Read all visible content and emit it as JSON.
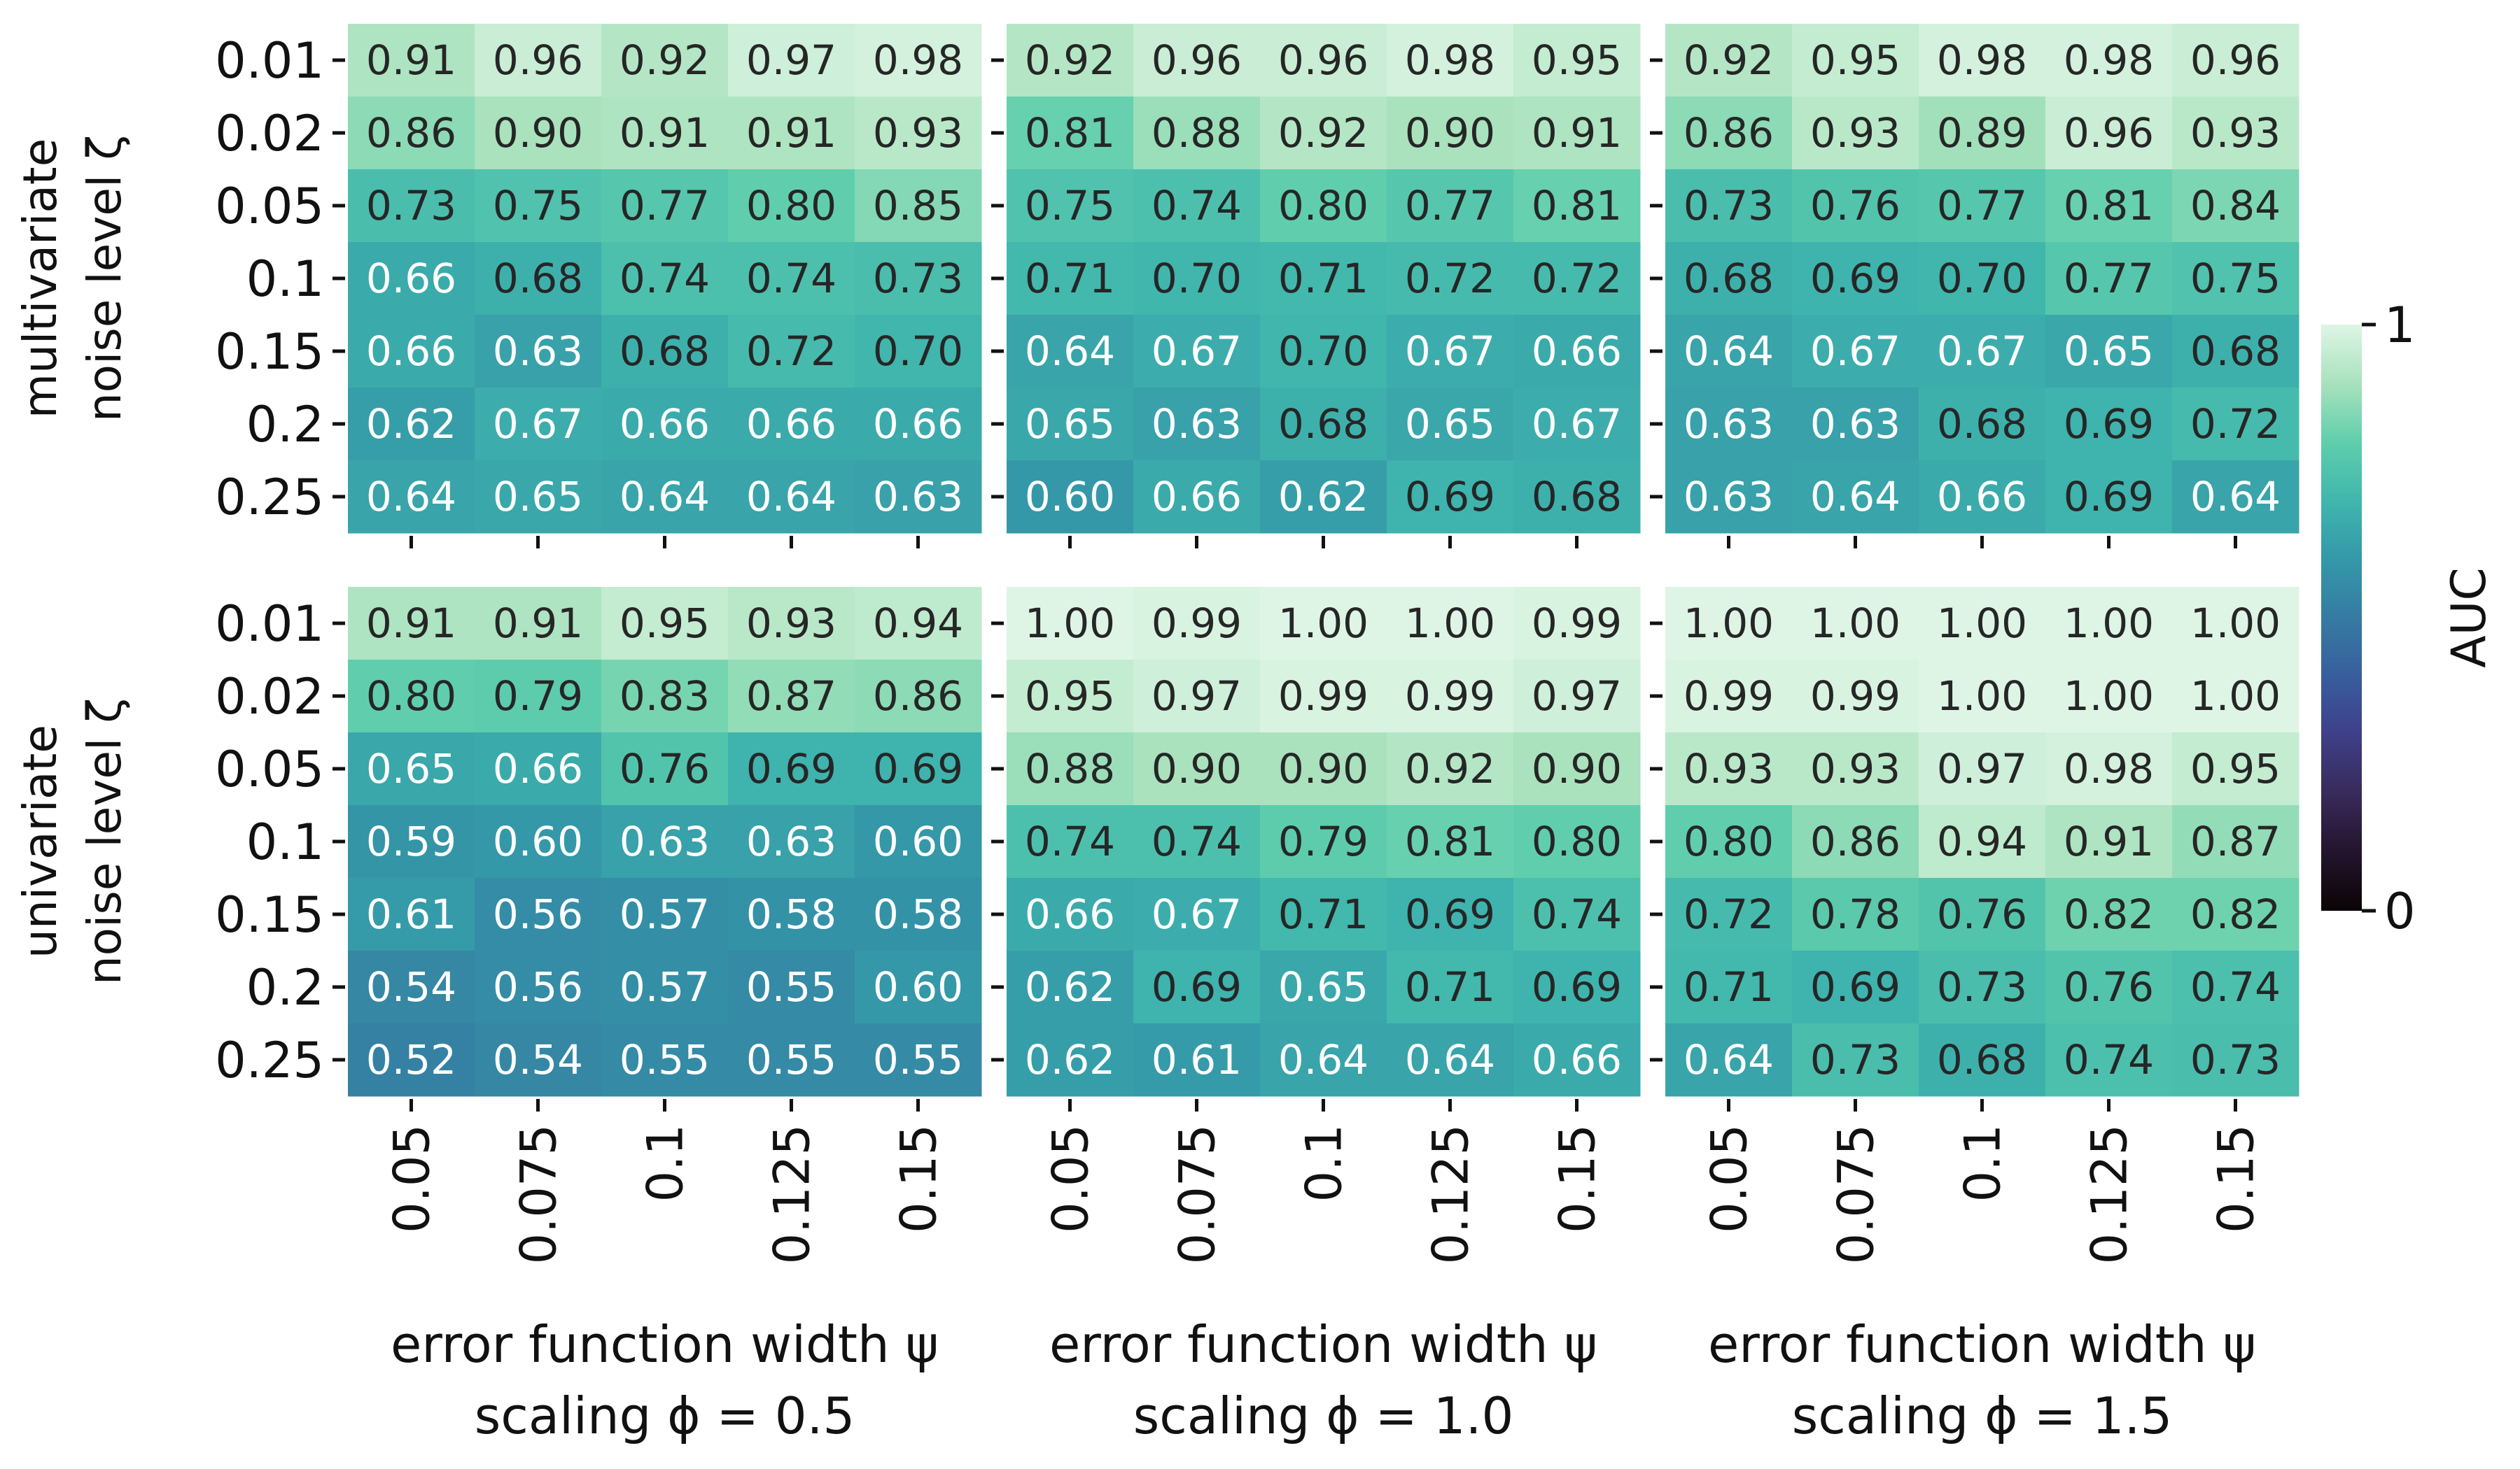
{
  "chart_data": {
    "type": "heatmap",
    "colormap": "mako",
    "x_tick_labels": [
      "0.05",
      "0.075",
      "0.1",
      "0.125",
      "0.15"
    ],
    "y_tick_labels": [
      "0.01",
      "0.02",
      "0.05",
      "0.1",
      "0.15",
      "0.2",
      "0.25"
    ],
    "row_labels": [
      [
        "multivariate",
        "noise level ζ"
      ],
      [
        "univariate",
        "noise level ζ"
      ]
    ],
    "col_labels": [
      [
        "error function width ψ",
        "scaling ϕ = 0.5"
      ],
      [
        "error function width ψ",
        "scaling ϕ = 1.0"
      ],
      [
        "error function width ψ",
        "scaling ϕ = 1.5"
      ]
    ],
    "colorbar": {
      "label": "AUC",
      "min": 0,
      "max": 1,
      "tick_labels": [
        "0",
        "1"
      ]
    },
    "panels": [
      {
        "row": "multivariate",
        "scaling": "0.5",
        "values": [
          [
            0.91,
            0.96,
            0.92,
            0.97,
            0.98
          ],
          [
            0.86,
            0.9,
            0.91,
            0.91,
            0.93
          ],
          [
            0.73,
            0.75,
            0.77,
            0.8,
            0.85
          ],
          [
            0.66,
            0.68,
            0.74,
            0.74,
            0.73
          ],
          [
            0.66,
            0.63,
            0.68,
            0.72,
            0.7
          ],
          [
            0.62,
            0.67,
            0.66,
            0.66,
            0.66
          ],
          [
            0.64,
            0.65,
            0.64,
            0.64,
            0.63
          ]
        ]
      },
      {
        "row": "multivariate",
        "scaling": "1.0",
        "values": [
          [
            0.92,
            0.96,
            0.96,
            0.98,
            0.95
          ],
          [
            0.81,
            0.88,
            0.92,
            0.9,
            0.91
          ],
          [
            0.75,
            0.74,
            0.8,
            0.77,
            0.81
          ],
          [
            0.71,
            0.7,
            0.71,
            0.72,
            0.72
          ],
          [
            0.64,
            0.67,
            0.7,
            0.67,
            0.66
          ],
          [
            0.65,
            0.63,
            0.68,
            0.65,
            0.67
          ],
          [
            0.6,
            0.66,
            0.62,
            0.69,
            0.68
          ]
        ]
      },
      {
        "row": "multivariate",
        "scaling": "1.5",
        "values": [
          [
            0.92,
            0.95,
            0.98,
            0.98,
            0.96
          ],
          [
            0.86,
            0.93,
            0.89,
            0.96,
            0.93
          ],
          [
            0.73,
            0.76,
            0.77,
            0.81,
            0.84
          ],
          [
            0.68,
            0.69,
            0.7,
            0.77,
            0.75
          ],
          [
            0.64,
            0.67,
            0.67,
            0.65,
            0.68
          ],
          [
            0.63,
            0.63,
            0.68,
            0.69,
            0.72
          ],
          [
            0.63,
            0.64,
            0.66,
            0.69,
            0.64
          ]
        ]
      },
      {
        "row": "univariate",
        "scaling": "0.5",
        "values": [
          [
            0.91,
            0.91,
            0.95,
            0.93,
            0.94
          ],
          [
            0.8,
            0.79,
            0.83,
            0.87,
            0.86
          ],
          [
            0.65,
            0.66,
            0.76,
            0.69,
            0.69
          ],
          [
            0.59,
            0.6,
            0.63,
            0.63,
            0.6
          ],
          [
            0.61,
            0.56,
            0.57,
            0.58,
            0.58
          ],
          [
            0.54,
            0.56,
            0.57,
            0.55,
            0.6
          ],
          [
            0.52,
            0.54,
            0.55,
            0.55,
            0.55
          ]
        ]
      },
      {
        "row": "univariate",
        "scaling": "1.0",
        "values": [
          [
            1.0,
            0.99,
            1.0,
            1.0,
            0.99
          ],
          [
            0.95,
            0.97,
            0.99,
            0.99,
            0.97
          ],
          [
            0.88,
            0.9,
            0.9,
            0.92,
            0.9
          ],
          [
            0.74,
            0.74,
            0.79,
            0.81,
            0.8
          ],
          [
            0.66,
            0.67,
            0.71,
            0.69,
            0.74
          ],
          [
            0.62,
            0.69,
            0.65,
            0.71,
            0.69
          ],
          [
            0.62,
            0.61,
            0.64,
            0.64,
            0.66
          ]
        ]
      },
      {
        "row": "univariate",
        "scaling": "1.5",
        "values": [
          [
            1.0,
            1.0,
            1.0,
            1.0,
            1.0
          ],
          [
            0.99,
            0.99,
            1.0,
            1.0,
            1.0
          ],
          [
            0.93,
            0.93,
            0.97,
            0.98,
            0.95
          ],
          [
            0.8,
            0.86,
            0.94,
            0.91,
            0.87
          ],
          [
            0.72,
            0.78,
            0.76,
            0.82,
            0.82
          ],
          [
            0.71,
            0.69,
            0.73,
            0.76,
            0.74
          ],
          [
            0.64,
            0.73,
            0.68,
            0.74,
            0.73
          ]
        ]
      }
    ]
  }
}
